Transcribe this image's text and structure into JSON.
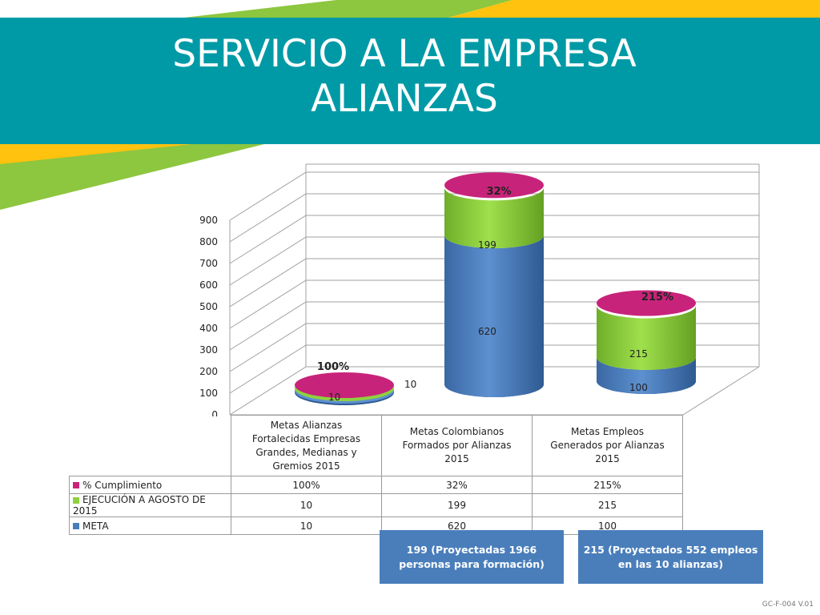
{
  "slide": {
    "title_line1": "SERVICIO A LA EMPRESA",
    "title_line2": "ALIANZAS",
    "footer_code": "GC-F-004 V.01"
  },
  "colors": {
    "teal": "#009aa6",
    "green": "#8dc63f",
    "yellow": "#ffc20e",
    "meta": "#4a7ebb",
    "ejecucion": "#8fd13f",
    "cumplimiento": "#c8237a"
  },
  "chart_data": {
    "type": "bar",
    "style": "3d-cylinder-stacked",
    "title": "",
    "categories": [
      [
        "Metas Alianzas",
        "Fortalecidas Empresas",
        "Grandes, Medianas y",
        "Gremios 2015"
      ],
      [
        "Metas Colombianos",
        "Formados por Alianzas",
        "2015"
      ],
      [
        "Metas Empleos",
        "Generados por Alianzas",
        "2015"
      ]
    ],
    "series": [
      {
        "name": "META",
        "values": [
          10,
          620,
          100
        ],
        "labels": [
          "10",
          "620",
          "100"
        ],
        "color": "#4a7ebb"
      },
      {
        "name": "EJECUCIÓN A AGOSTO DE 2015",
        "values": [
          10,
          199,
          215
        ],
        "labels": [
          "10",
          "199",
          "215"
        ],
        "color": "#8fd13f"
      },
      {
        "name": "% Cumplimiento",
        "values": [
          100,
          32,
          215
        ],
        "labels": [
          "100%",
          "32%",
          "215%"
        ],
        "color": "#c8237a"
      }
    ],
    "yticks": [
      0,
      100,
      200,
      300,
      400,
      500,
      600,
      700,
      800,
      900
    ],
    "ylim": [
      0,
      900
    ],
    "grid": true,
    "legend": "data-table"
  },
  "notes": [
    "199 (Proyectadas 1966 personas para formación)",
    "215 (Proyectados 552 empleos en las 10 alianzas)"
  ]
}
